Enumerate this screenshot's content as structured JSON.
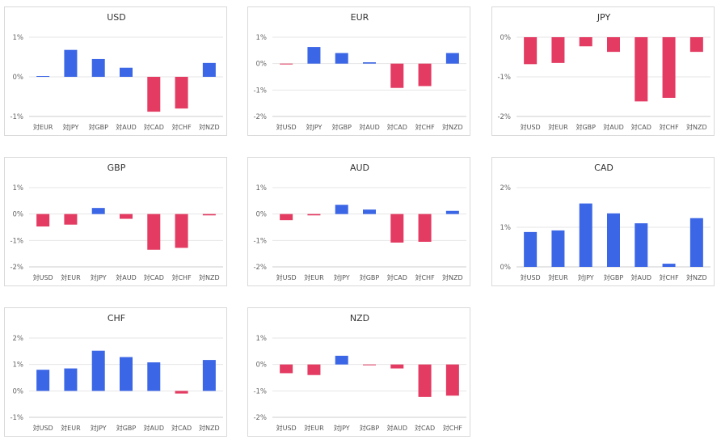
{
  "colors": {
    "positive": "#3b66e6",
    "negative": "#e33b62"
  },
  "chart_data": [
    {
      "type": "bar",
      "title": "USD",
      "categories": [
        "対EUR",
        "対JPY",
        "対GBP",
        "対AUD",
        "対CAD",
        "対CHF",
        "対NZD"
      ],
      "values": [
        0.02,
        0.68,
        0.45,
        0.23,
        -0.88,
        -0.8,
        0.35
      ],
      "ylim": [
        -1,
        1
      ],
      "yticks": [
        1,
        0,
        -1
      ],
      "ytick_labels": [
        "1%",
        "0%",
        "-1%"
      ]
    },
    {
      "type": "bar",
      "title": "EUR",
      "categories": [
        "対USD",
        "対JPY",
        "対GBP",
        "対AUD",
        "対CAD",
        "対CHF",
        "対NZD"
      ],
      "values": [
        -0.02,
        0.63,
        0.4,
        0.05,
        -0.92,
        -0.85,
        0.4
      ],
      "ylim": [
        -2,
        1
      ],
      "yticks": [
        1,
        0,
        -1,
        -2
      ],
      "ytick_labels": [
        "1%",
        "0%",
        "-1%",
        "-2%"
      ]
    },
    {
      "type": "bar",
      "title": "JPY",
      "categories": [
        "対USD",
        "対EUR",
        "対GBP",
        "対AUD",
        "対CAD",
        "対CHF",
        "対NZD"
      ],
      "values": [
        -0.68,
        -0.65,
        -0.23,
        -0.37,
        -1.62,
        -1.53,
        -0.37
      ],
      "ylim": [
        -2,
        0
      ],
      "yticks": [
        0,
        -1,
        -2
      ],
      "ytick_labels": [
        "0%",
        "-1%",
        "-2%"
      ]
    },
    {
      "type": "bar",
      "title": "GBP",
      "categories": [
        "対USD",
        "対EUR",
        "対JPY",
        "対AUD",
        "対CAD",
        "対CHF",
        "対NZD"
      ],
      "values": [
        -0.47,
        -0.4,
        0.23,
        -0.18,
        -1.35,
        -1.28,
        -0.05
      ],
      "ylim": [
        -2,
        1
      ],
      "yticks": [
        1,
        0,
        -1,
        -2
      ],
      "ytick_labels": [
        "1%",
        "0%",
        "-1%",
        "-2%"
      ]
    },
    {
      "type": "bar",
      "title": "AUD",
      "categories": [
        "対USD",
        "対EUR",
        "対JPY",
        "対GBP",
        "対CAD",
        "対CHF",
        "対NZD"
      ],
      "values": [
        -0.23,
        -0.05,
        0.35,
        0.17,
        -1.08,
        -1.05,
        0.12
      ],
      "ylim": [
        -2,
        1
      ],
      "yticks": [
        1,
        0,
        -1,
        -2
      ],
      "ytick_labels": [
        "1%",
        "0%",
        "-1%",
        "-2%"
      ]
    },
    {
      "type": "bar",
      "title": "CAD",
      "categories": [
        "対USD",
        "対EUR",
        "対JPY",
        "対GBP",
        "対AUD",
        "対CHF",
        "対NZD"
      ],
      "values": [
        0.88,
        0.92,
        1.6,
        1.35,
        1.1,
        0.08,
        1.23
      ],
      "ylim": [
        0,
        2
      ],
      "yticks": [
        2,
        1,
        0
      ],
      "ytick_labels": [
        "2%",
        "1%",
        "0%"
      ]
    },
    {
      "type": "bar",
      "title": "CHF",
      "categories": [
        "対USD",
        "対EUR",
        "対JPY",
        "対GBP",
        "対AUD",
        "対CAD",
        "対NZD"
      ],
      "values": [
        0.8,
        0.85,
        1.52,
        1.28,
        1.08,
        -0.1,
        1.17
      ],
      "ylim": [
        -1,
        2
      ],
      "yticks": [
        2,
        1,
        0,
        -1
      ],
      "ytick_labels": [
        "2%",
        "1%",
        "0%",
        "-1%"
      ]
    },
    {
      "type": "bar",
      "title": "NZD",
      "categories": [
        "対USD",
        "対EUR",
        "対JPY",
        "対GBP",
        "対AUD",
        "対CAD",
        "対CHF"
      ],
      "values": [
        -0.33,
        -0.4,
        0.33,
        -0.02,
        -0.15,
        -1.23,
        -1.18
      ],
      "ylim": [
        -2,
        1
      ],
      "yticks": [
        1,
        0,
        -1,
        -2
      ],
      "ytick_labels": [
        "1%",
        "0%",
        "-1%",
        "-2%"
      ]
    }
  ]
}
